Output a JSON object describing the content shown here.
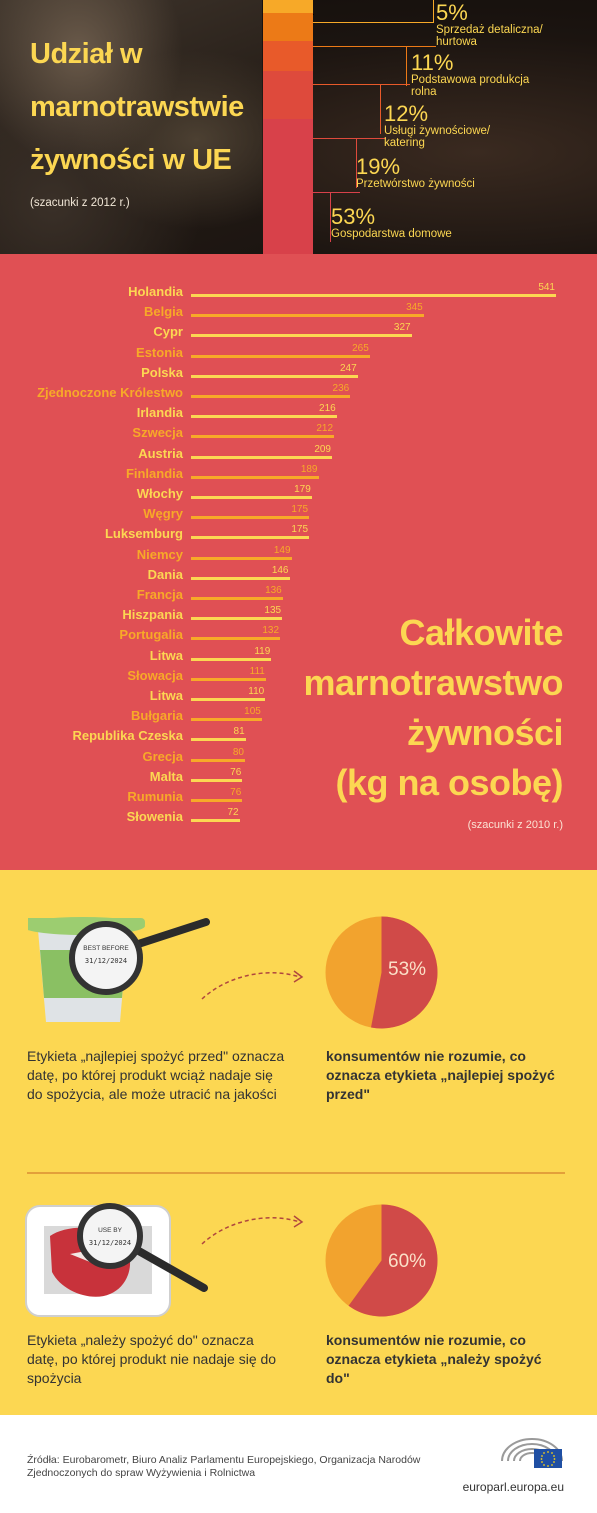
{
  "top": {
    "title_lines": [
      "Udział w",
      "marnotrawstwie",
      "żywności w UE"
    ],
    "subtitle": "(szacunki z 2012 r.)",
    "shares": [
      {
        "pct": "5%",
        "label_lines": [
          "Sprzedaż detaliczna/",
          "hurtowa"
        ],
        "value": 5,
        "color": "#f7a928"
      },
      {
        "pct": "11%",
        "label_lines": [
          "Podstawowa produkcja",
          "rolna"
        ],
        "value": 11,
        "color": "#ec7a17"
      },
      {
        "pct": "12%",
        "label_lines": [
          "Usługi żywnościowe/",
          "katering"
        ],
        "value": 12,
        "color": "#e85a2a"
      },
      {
        "pct": "19%",
        "label_lines": [
          "Przetwórstwo żywności"
        ],
        "value": 19,
        "color": "#de4a3c"
      },
      {
        "pct": "53%",
        "label_lines": [
          "Gospodarstwa domowe"
        ],
        "value": 53,
        "color": "#d8414a"
      }
    ]
  },
  "chart_data": {
    "type": "bar",
    "orientation": "horizontal",
    "title_lines": [
      "Całkowite",
      "marnotrawstwo",
      "żywności",
      "(kg na osobę)"
    ],
    "subtitle": "(szacunki z 2010 r.)",
    "categories": [
      "Holandia",
      "Belgia",
      "Cypr",
      "Estonia",
      "Polska",
      "Zjednoczone Królestwo",
      "Irlandia",
      "Szwecja",
      "Austria",
      "Finlandia",
      "Włochy",
      "Węgry",
      "Luksemburg",
      "Niemcy",
      "Dania",
      "Francja",
      "Hiszpania",
      "Portugalia",
      "Litwa",
      "Słowacja",
      "Litwa",
      "Bułgaria",
      "Republika Czeska",
      "Grecja",
      "Malta",
      "Rumunia",
      "Słowenia"
    ],
    "values": [
      541,
      345,
      327,
      265,
      247,
      236,
      216,
      212,
      209,
      189,
      179,
      175,
      175,
      149,
      146,
      136,
      135,
      132,
      119,
      111,
      110,
      105,
      81,
      80,
      76,
      76,
      72
    ],
    "xlim": [
      0,
      541
    ],
    "colors": {
      "primary": "#fcd752",
      "secondary": "#f7a928"
    }
  },
  "best_before": {
    "label_text_line1": "BEST BEFORE",
    "label_text_line2": "31/12/2024",
    "description": "Etykieta „najlepiej spożyć przed\" oznacza datę, po której produkt wciąż nadaje się do spożycia, ale może utracić na jakości",
    "percent_label": "53%",
    "percent": 53,
    "stat_text": "konsumentów nie rozumie, co oznacza etykieta „najlepiej spożyć przed\""
  },
  "use_by": {
    "label_text_line1": "USE BY",
    "label_text_line2": "31/12/2024",
    "description": "Etykieta „należy spożyć do\" oznacza datę, po której produkt nie nadaje się do spożycia",
    "percent_label": "60%",
    "percent": 60,
    "stat_text": "konsumentów nie rozumie, co oznacza etykieta „należy spożyć do\""
  },
  "footer": {
    "sources": "Źródła: Eurobarometr, Biuro Analiz Parlamentu Europejskiego, Organizacja Narodów Zjednoczonych do spraw Wyżywienia i Rolnictwa",
    "site": "europarl.europa.eu"
  },
  "colors": {
    "red_bg": "#e05054",
    "yellow_bg": "#fcd752",
    "pie_red": "#d04a48",
    "pie_orange": "#f2a32e"
  }
}
